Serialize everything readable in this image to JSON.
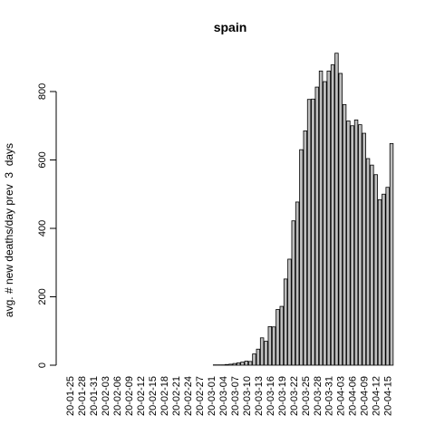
{
  "chart_data": {
    "type": "bar",
    "title": "spain",
    "y_label": "avg. # new deaths/day prev  3  days",
    "categories": [
      "20-01-25",
      null,
      null,
      "20-01-28",
      null,
      null,
      "20-01-31",
      null,
      null,
      "20-02-03",
      null,
      null,
      "20-02-06",
      null,
      null,
      "20-02-09",
      null,
      null,
      "20-02-12",
      null,
      null,
      "20-02-15",
      null,
      null,
      "20-02-18",
      null,
      null,
      "20-02-21",
      null,
      null,
      "20-02-24",
      null,
      null,
      "20-02-27",
      null,
      null,
      "20-03-01",
      null,
      null,
      "20-03-04",
      null,
      null,
      "20-03-07",
      null,
      null,
      "20-03-10",
      null,
      null,
      "20-03-13",
      null,
      null,
      "20-03-16",
      null,
      null,
      "20-03-19",
      null,
      null,
      "20-03-22",
      null,
      null,
      "20-03-25",
      null,
      null,
      "20-03-28",
      null,
      null,
      "20-03-31",
      null,
      null,
      "20-04-03",
      null,
      null,
      "20-04-06",
      null,
      null,
      "20-04-09",
      null,
      null,
      "20-04-12",
      null,
      null,
      "20-04-15",
      null
    ],
    "values": [
      0,
      0,
      0,
      0,
      0,
      0,
      0,
      0,
      0,
      0,
      0,
      0,
      0,
      0,
      0,
      0,
      0,
      0,
      0,
      0,
      0,
      0,
      0,
      0,
      0,
      0,
      0,
      0,
      0,
      0,
      0,
      0,
      0,
      0,
      0,
      0,
      0,
      1,
      1,
      1,
      2,
      3,
      5,
      7,
      9,
      12,
      11,
      33,
      47,
      80,
      70,
      113,
      112,
      163,
      172,
      252,
      310,
      422,
      477,
      630,
      685,
      777,
      778,
      813,
      860,
      829,
      860,
      878,
      912,
      853,
      762,
      714,
      700,
      717,
      703,
      678,
      604,
      585,
      557,
      484,
      500,
      520,
      648
    ],
    "color": "#bebebe",
    "ylim": [
      0,
      935
    ],
    "yticks": [
      0,
      200,
      400,
      600,
      800
    ]
  }
}
